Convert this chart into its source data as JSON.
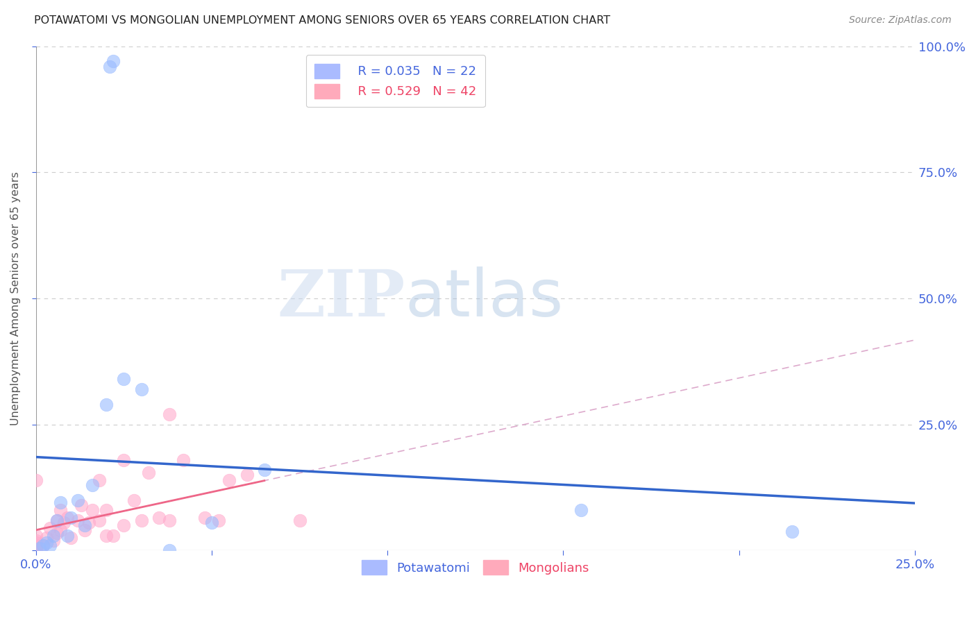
{
  "title": "POTAWATOMI VS MONGOLIAN UNEMPLOYMENT AMONG SENIORS OVER 65 YEARS CORRELATION CHART",
  "source": "Source: ZipAtlas.com",
  "ylabel": "Unemployment Among Seniors over 65 years",
  "xlim": [
    0.0,
    0.25
  ],
  "ylim": [
    0.0,
    1.0
  ],
  "xticks": [
    0.0,
    0.05,
    0.1,
    0.15,
    0.2,
    0.25
  ],
  "yticks": [
    0.0,
    0.25,
    0.5,
    0.75,
    1.0
  ],
  "xticklabels": [
    "0.0%",
    "",
    "",
    "",
    "",
    "25.0%"
  ],
  "yticklabels": [
    "",
    "25.0%",
    "50.0%",
    "75.0%",
    "100.0%"
  ],
  "potawatomi_color": "#99bbff",
  "mongolian_color": "#ffaacc",
  "potawatomi_R": 0.035,
  "potawatomi_N": 22,
  "mongolian_R": 0.529,
  "mongolian_N": 42,
  "legend_R_color": "#4466dd",
  "legend_R2_color": "#ee4466",
  "potawatomi_x": [
    0.021,
    0.022,
    0.004,
    0.005,
    0.006,
    0.007,
    0.009,
    0.01,
    0.012,
    0.014,
    0.016,
    0.02,
    0.025,
    0.03,
    0.038,
    0.05,
    0.065,
    0.155,
    0.215,
    0.001,
    0.002,
    0.003
  ],
  "potawatomi_y": [
    0.96,
    0.97,
    0.01,
    0.03,
    0.06,
    0.095,
    0.03,
    0.065,
    0.1,
    0.05,
    0.13,
    0.29,
    0.34,
    0.32,
    0.0,
    0.055,
    0.16,
    0.08,
    0.038,
    0.005,
    0.01,
    0.015
  ],
  "mongolian_x": [
    0.0,
    0.0,
    0.0,
    0.0,
    0.0,
    0.0,
    0.0,
    0.002,
    0.003,
    0.004,
    0.005,
    0.006,
    0.006,
    0.007,
    0.007,
    0.008,
    0.009,
    0.01,
    0.012,
    0.013,
    0.014,
    0.015,
    0.016,
    0.018,
    0.018,
    0.02,
    0.02,
    0.022,
    0.025,
    0.025,
    0.028,
    0.03,
    0.032,
    0.035,
    0.038,
    0.042,
    0.048,
    0.052,
    0.055,
    0.06,
    0.075,
    0.038
  ],
  "mongolian_y": [
    0.0,
    0.005,
    0.01,
    0.015,
    0.02,
    0.03,
    0.14,
    0.01,
    0.025,
    0.045,
    0.02,
    0.035,
    0.06,
    0.04,
    0.08,
    0.055,
    0.065,
    0.025,
    0.06,
    0.09,
    0.04,
    0.055,
    0.08,
    0.06,
    0.14,
    0.03,
    0.08,
    0.03,
    0.05,
    0.18,
    0.1,
    0.06,
    0.155,
    0.065,
    0.06,
    0.18,
    0.065,
    0.06,
    0.14,
    0.15,
    0.06,
    0.27
  ],
  "watermark_zip": "ZIP",
  "watermark_atlas": "atlas",
  "background_color": "#ffffff",
  "grid_color": "#cccccc",
  "tick_color": "#4466dd",
  "axis_label_color": "#555555",
  "title_color": "#222222",
  "blue_line_color": "#3366cc",
  "pink_solid_color": "#ee6688",
  "pink_dash_color": "#ddaacc"
}
